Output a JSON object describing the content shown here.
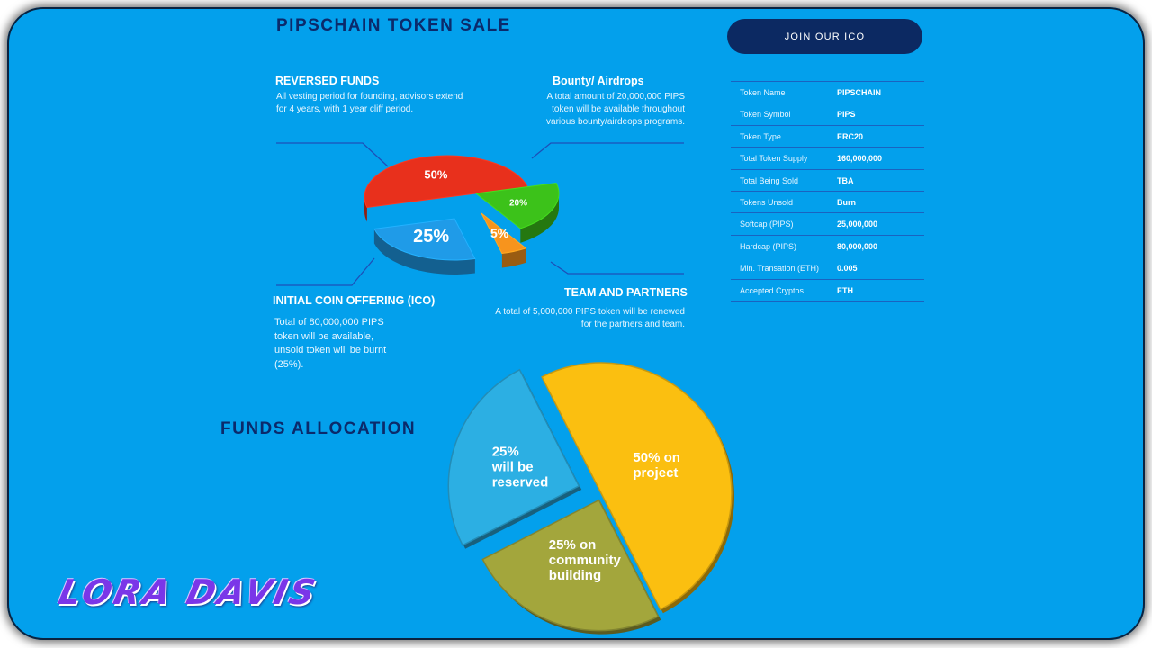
{
  "header": {
    "title": "PIPSCHAIN TOKEN SALE",
    "join_label": "JOIN OUR ICO"
  },
  "sections": {
    "reversed_funds": {
      "title": "REVERSED FUNDS",
      "lines": [
        "All vesting period for founding, advisors extend",
        "for 4 years, with 1 year cliff period."
      ]
    },
    "bounty": {
      "title": "Bounty/ Airdrops",
      "lines": [
        "A total amount of 20,000,000 PIPS",
        "token will be available throughout",
        "various bounty/airdeops programs."
      ]
    },
    "ico": {
      "title": "INITIAL COIN OFFERING (ICO)",
      "lines": [
        "Total of 80,000,000 PIPS",
        "token will be available,",
        "unsold token will be burnt",
        "(25%)."
      ]
    },
    "team": {
      "title": "TEAM AND PARTNERS",
      "lines": [
        "A total of 5,000,000 PIPS token will be renewed",
        "for the partners and team."
      ]
    }
  },
  "token_table": [
    {
      "key": "Token Name",
      "value": "PIPSCHAIN"
    },
    {
      "key": "Token Symbol",
      "value": "PIPS"
    },
    {
      "key": "Token Type",
      "value": "ERC20"
    },
    {
      "key": "Total Token Supply",
      "value": "160,000,000"
    },
    {
      "key": "Total Being Sold",
      "value": "TBA"
    },
    {
      "key": "Tokens Unsold",
      "value": "Burn"
    },
    {
      "key": "Softcap (PIPS)",
      "value": "25,000,000"
    },
    {
      "key": "Hardcap (PIPS)",
      "value": "80,000,000"
    },
    {
      "key": "Min. Transation (ETH)",
      "value": "0.005"
    },
    {
      "key": "Accepted Cryptos",
      "value": "ETH"
    }
  ],
  "funds_title": "FUNDS ALLOCATION",
  "logo_text": "LORA DAVIS",
  "colors": {
    "background": "#03a0ec",
    "title": "#0b2a6b",
    "button": "#0c2962"
  },
  "chart_data": [
    {
      "type": "pie",
      "title": "",
      "slices": [
        {
          "label": "50%",
          "value": 50,
          "color": "#e8301c"
        },
        {
          "label": "20%",
          "value": 20,
          "color": "#3cc21a"
        },
        {
          "label": "5%",
          "value": 5,
          "color": "#f7941d"
        },
        {
          "label": "25%",
          "value": 25,
          "color": "#1f9be8"
        }
      ]
    },
    {
      "type": "pie",
      "title": "FUNDS ALLOCATION",
      "slices": [
        {
          "label": "50% on project",
          "value": 50,
          "color": "#fbbf10",
          "lines": [
            "50% on",
            "project"
          ]
        },
        {
          "label": "25% on community building",
          "value": 25,
          "color": "#a3a63c",
          "lines": [
            "25% on",
            "community",
            "building"
          ]
        },
        {
          "label": "25% will be reserved",
          "value": 25,
          "color": "#2cafe3",
          "lines": [
            "25%",
            "will be",
            "reserved"
          ]
        }
      ]
    }
  ]
}
